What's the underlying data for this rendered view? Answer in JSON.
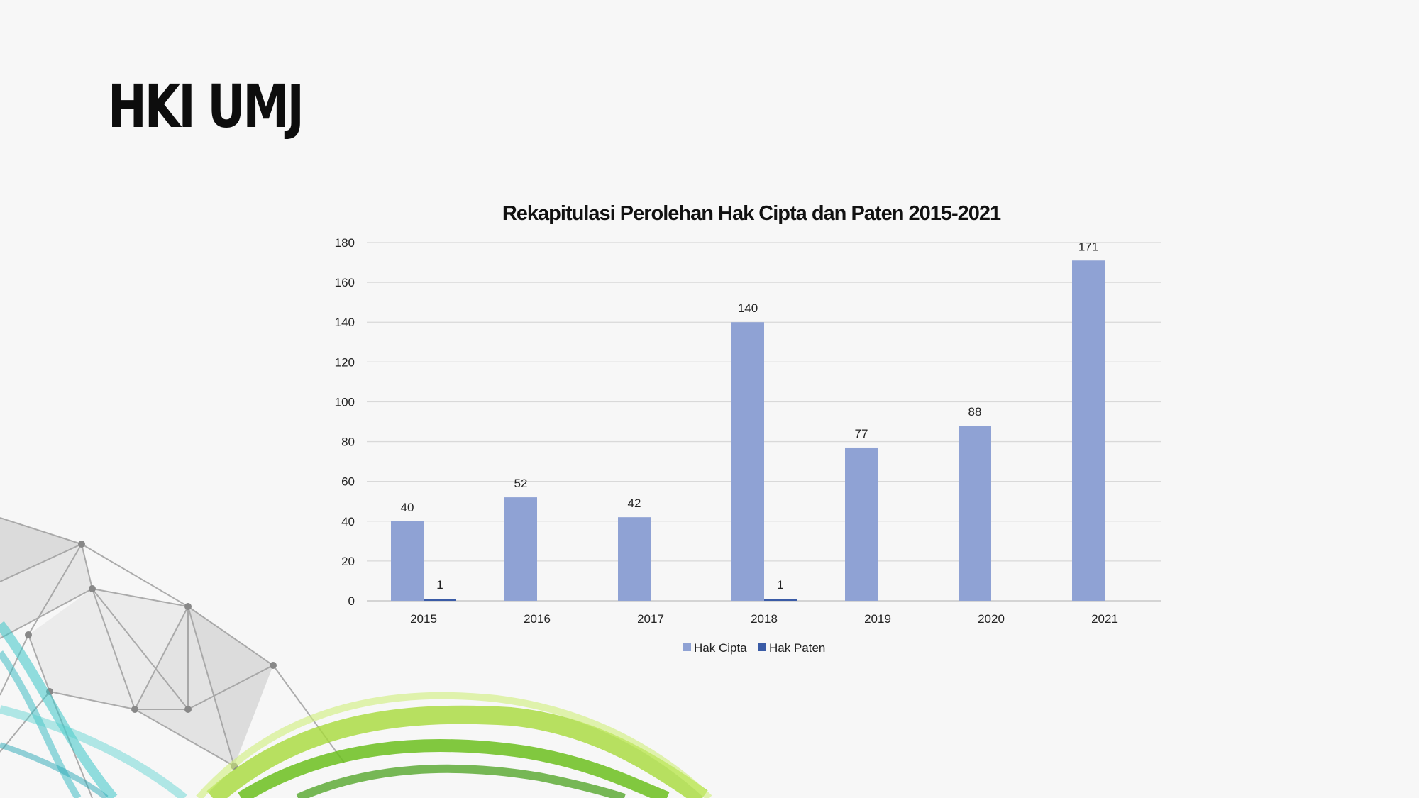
{
  "slide": {
    "title": "HKI UMJ"
  },
  "colors": {
    "hak_cipta": "#8fa2d4",
    "hak_paten": "#3a5ba6",
    "grid": "#d9d9d9",
    "background": "#f7f7f7"
  },
  "chart_data": {
    "type": "bar",
    "title": "Rekapitulasi Perolehan Hak Cipta dan Paten 2015-2021",
    "xlabel": "",
    "ylabel": "",
    "categories": [
      "2015",
      "2016",
      "2017",
      "2018",
      "2019",
      "2020",
      "2021"
    ],
    "series": [
      {
        "name": "Hak Cipta",
        "values": [
          40,
          52,
          42,
          140,
          77,
          88,
          171
        ],
        "labels": [
          "40",
          "52",
          "42",
          "140",
          "77",
          "88",
          "171"
        ]
      },
      {
        "name": "Hak Paten",
        "values": [
          1,
          null,
          null,
          1,
          null,
          null,
          null
        ],
        "labels": [
          "1",
          null,
          null,
          "1",
          null,
          null,
          null
        ]
      }
    ],
    "ylim": [
      0,
      180
    ],
    "yticks": [
      "0",
      "20",
      "40",
      "60",
      "80",
      "100",
      "120",
      "140",
      "160",
      "180"
    ],
    "grid": true,
    "legend_position": "bottom"
  }
}
